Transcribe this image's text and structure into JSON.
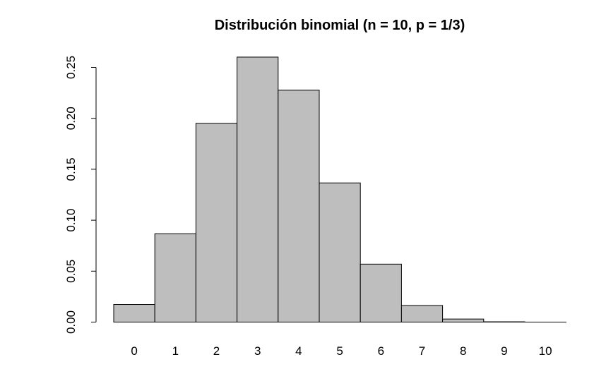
{
  "chart_data": {
    "type": "bar",
    "title": "Distribución binomial (n = 10, p = 1/3)",
    "xlabel": "",
    "ylabel": "",
    "categories": [
      "0",
      "1",
      "2",
      "3",
      "4",
      "5",
      "6",
      "7",
      "8",
      "9",
      "10"
    ],
    "values": [
      0.0173,
      0.0867,
      0.1951,
      0.2601,
      0.2276,
      0.1366,
      0.0569,
      0.0163,
      0.003,
      0.0003,
      0.0
    ],
    "ylim": [
      0,
      0.25
    ],
    "yticks": [
      "0.00",
      "0.05",
      "0.10",
      "0.15",
      "0.20",
      "0.25"
    ],
    "grid": false,
    "bar_color": "#bebebe",
    "border_color": "#000000"
  }
}
